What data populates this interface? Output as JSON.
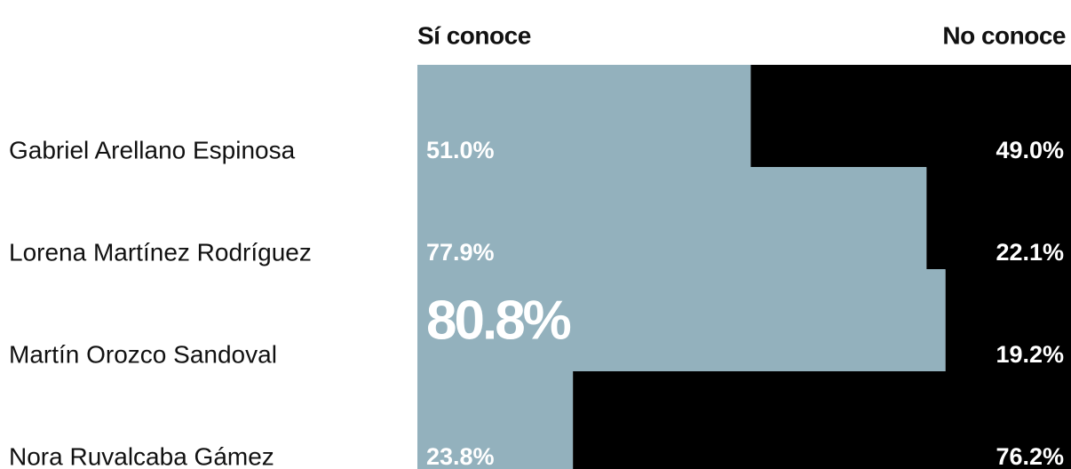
{
  "chart_data": {
    "type": "stacked-bar-horizontal",
    "categories": [
      "Gabriel Arellano Espinosa",
      "Lorena Martínez Rodríguez",
      "Martín Orozco Sandoval",
      "Nora Ruvalcaba Gámez"
    ],
    "series": [
      {
        "name": "Sí conoce",
        "color": "#93b1bd",
        "values": [
          51,
          77.9,
          80.8,
          23.8
        ],
        "value_labels": [
          "51.0%",
          "77.9%",
          "80.8%",
          "23.8%"
        ],
        "emphasis": [
          false,
          false,
          true,
          false
        ]
      },
      {
        "name": "No conoce",
        "color": "#000000",
        "values": [
          49,
          22.1,
          19.2,
          76.2
        ],
        "value_labels": [
          "49.0%",
          "22.1%",
          "19.2%",
          "76.2%"
        ]
      }
    ],
    "xlim": [
      0,
      100
    ]
  }
}
